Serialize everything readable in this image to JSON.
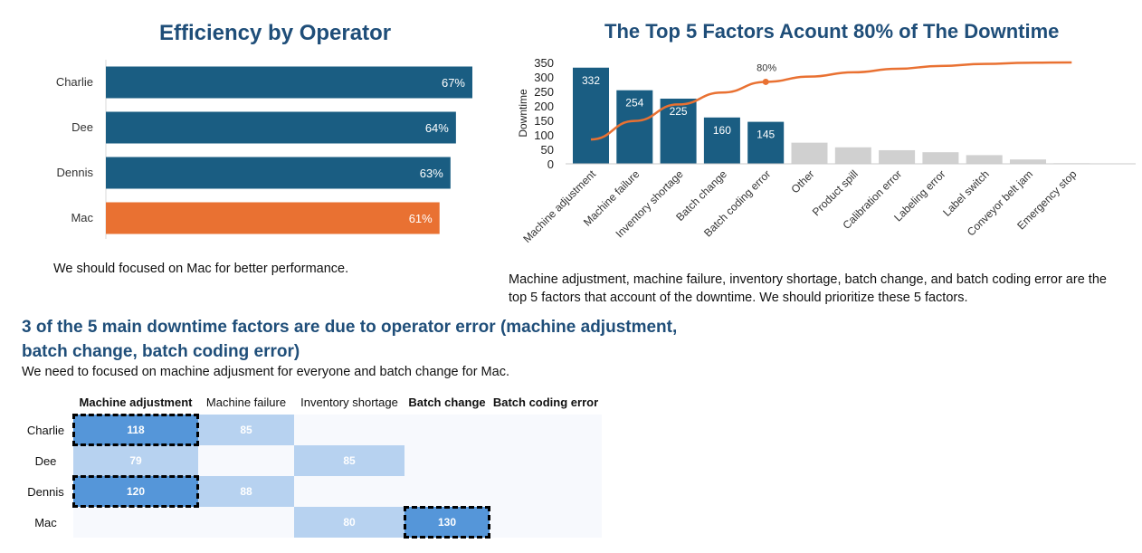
{
  "colors": {
    "title": "#1f4e79",
    "bar_main": "#1a5d82",
    "bar_highlight": "#e97132",
    "bar_other": "#d0d0d0",
    "pareto_line": "#e97132",
    "heat_high": "#5596d9",
    "heat_mid": "#b7d2f0",
    "heat_low": "#f7f9fd"
  },
  "efficiency": {
    "title": "Efficiency by Operator",
    "note": "We should focused on Mac for better performance."
  },
  "pareto": {
    "title": "The Top 5 Factors Acount 80% of The Downtime",
    "note_line1": "Machine adjustment, machine failure, inventory shortage, batch change, and batch coding error are the",
    "note_line2": "top 5 factors that account of the downtime. We should prioritize these 5 factors."
  },
  "heatmap_section": {
    "heading_line1": "3 of the 5 main downtime factors are due to operator error (machine adjustment,",
    "heading_line2": "batch change, batch coding error)",
    "subtext": "We need to focused on machine adjusment for everyone and batch change for Mac."
  },
  "chart_data": [
    {
      "type": "bar",
      "orientation": "horizontal",
      "title": "Efficiency by Operator",
      "categories": [
        "Charlie",
        "Dee",
        "Dennis",
        "Mac"
      ],
      "values": [
        67,
        64,
        63,
        61
      ],
      "value_labels": [
        "67%",
        "64%",
        "63%",
        "61%"
      ],
      "highlight": "Mac",
      "xlim": [
        0,
        67
      ]
    },
    {
      "type": "bar",
      "title": "The Top 5 Factors Acount 80% of The Downtime",
      "ylabel": "Downtime",
      "ylim": [
        0,
        350
      ],
      "yticks": [
        0,
        50,
        100,
        150,
        200,
        250,
        300,
        350
      ],
      "categories": [
        "Machine adjustment",
        "Machine failure",
        "Inventory shortage",
        "Batch change",
        "Batch coding error",
        "Other",
        "Product spill",
        "Calibration error",
        "Labeling error",
        "Label switch",
        "Conveyor belt jam",
        "Emergency stop"
      ],
      "values": [
        332,
        254,
        225,
        160,
        145,
        73,
        57,
        47,
        40,
        30,
        15,
        2
      ],
      "data_labels": [
        "332",
        "254",
        "225",
        "160",
        "145",
        "",
        "",
        "",
        "",
        "",
        "",
        ""
      ],
      "top_n_highlighted": 5,
      "cumulative_line": [
        84,
        148,
        205,
        246,
        283,
        301,
        316,
        328,
        338,
        345,
        349,
        350
      ],
      "cumulative_marker": {
        "index": 4,
        "label": "80%"
      }
    },
    {
      "type": "heatmap",
      "columns": [
        "Machine adjustment",
        "Machine failure",
        "Inventory shortage",
        "Batch change",
        "Batch coding error"
      ],
      "bold_columns": [
        0,
        3,
        4
      ],
      "rows": [
        "Charlie",
        "Dee",
        "Dennis",
        "Mac"
      ],
      "values": [
        [
          118,
          85,
          null,
          null,
          null
        ],
        [
          79,
          null,
          85,
          null,
          null
        ],
        [
          120,
          88,
          null,
          null,
          null
        ],
        [
          null,
          null,
          80,
          130,
          null
        ]
      ],
      "level": [
        [
          "high",
          "mid",
          "low",
          "low",
          "low"
        ],
        [
          "mid",
          "low",
          "mid",
          "low",
          "low"
        ],
        [
          "high",
          "mid",
          "low",
          "low",
          "low"
        ],
        [
          "low",
          "low",
          "mid",
          "high",
          "low"
        ]
      ],
      "highlighted_cells": [
        [
          0,
          0
        ],
        [
          2,
          0
        ],
        [
          3,
          3
        ]
      ]
    }
  ]
}
